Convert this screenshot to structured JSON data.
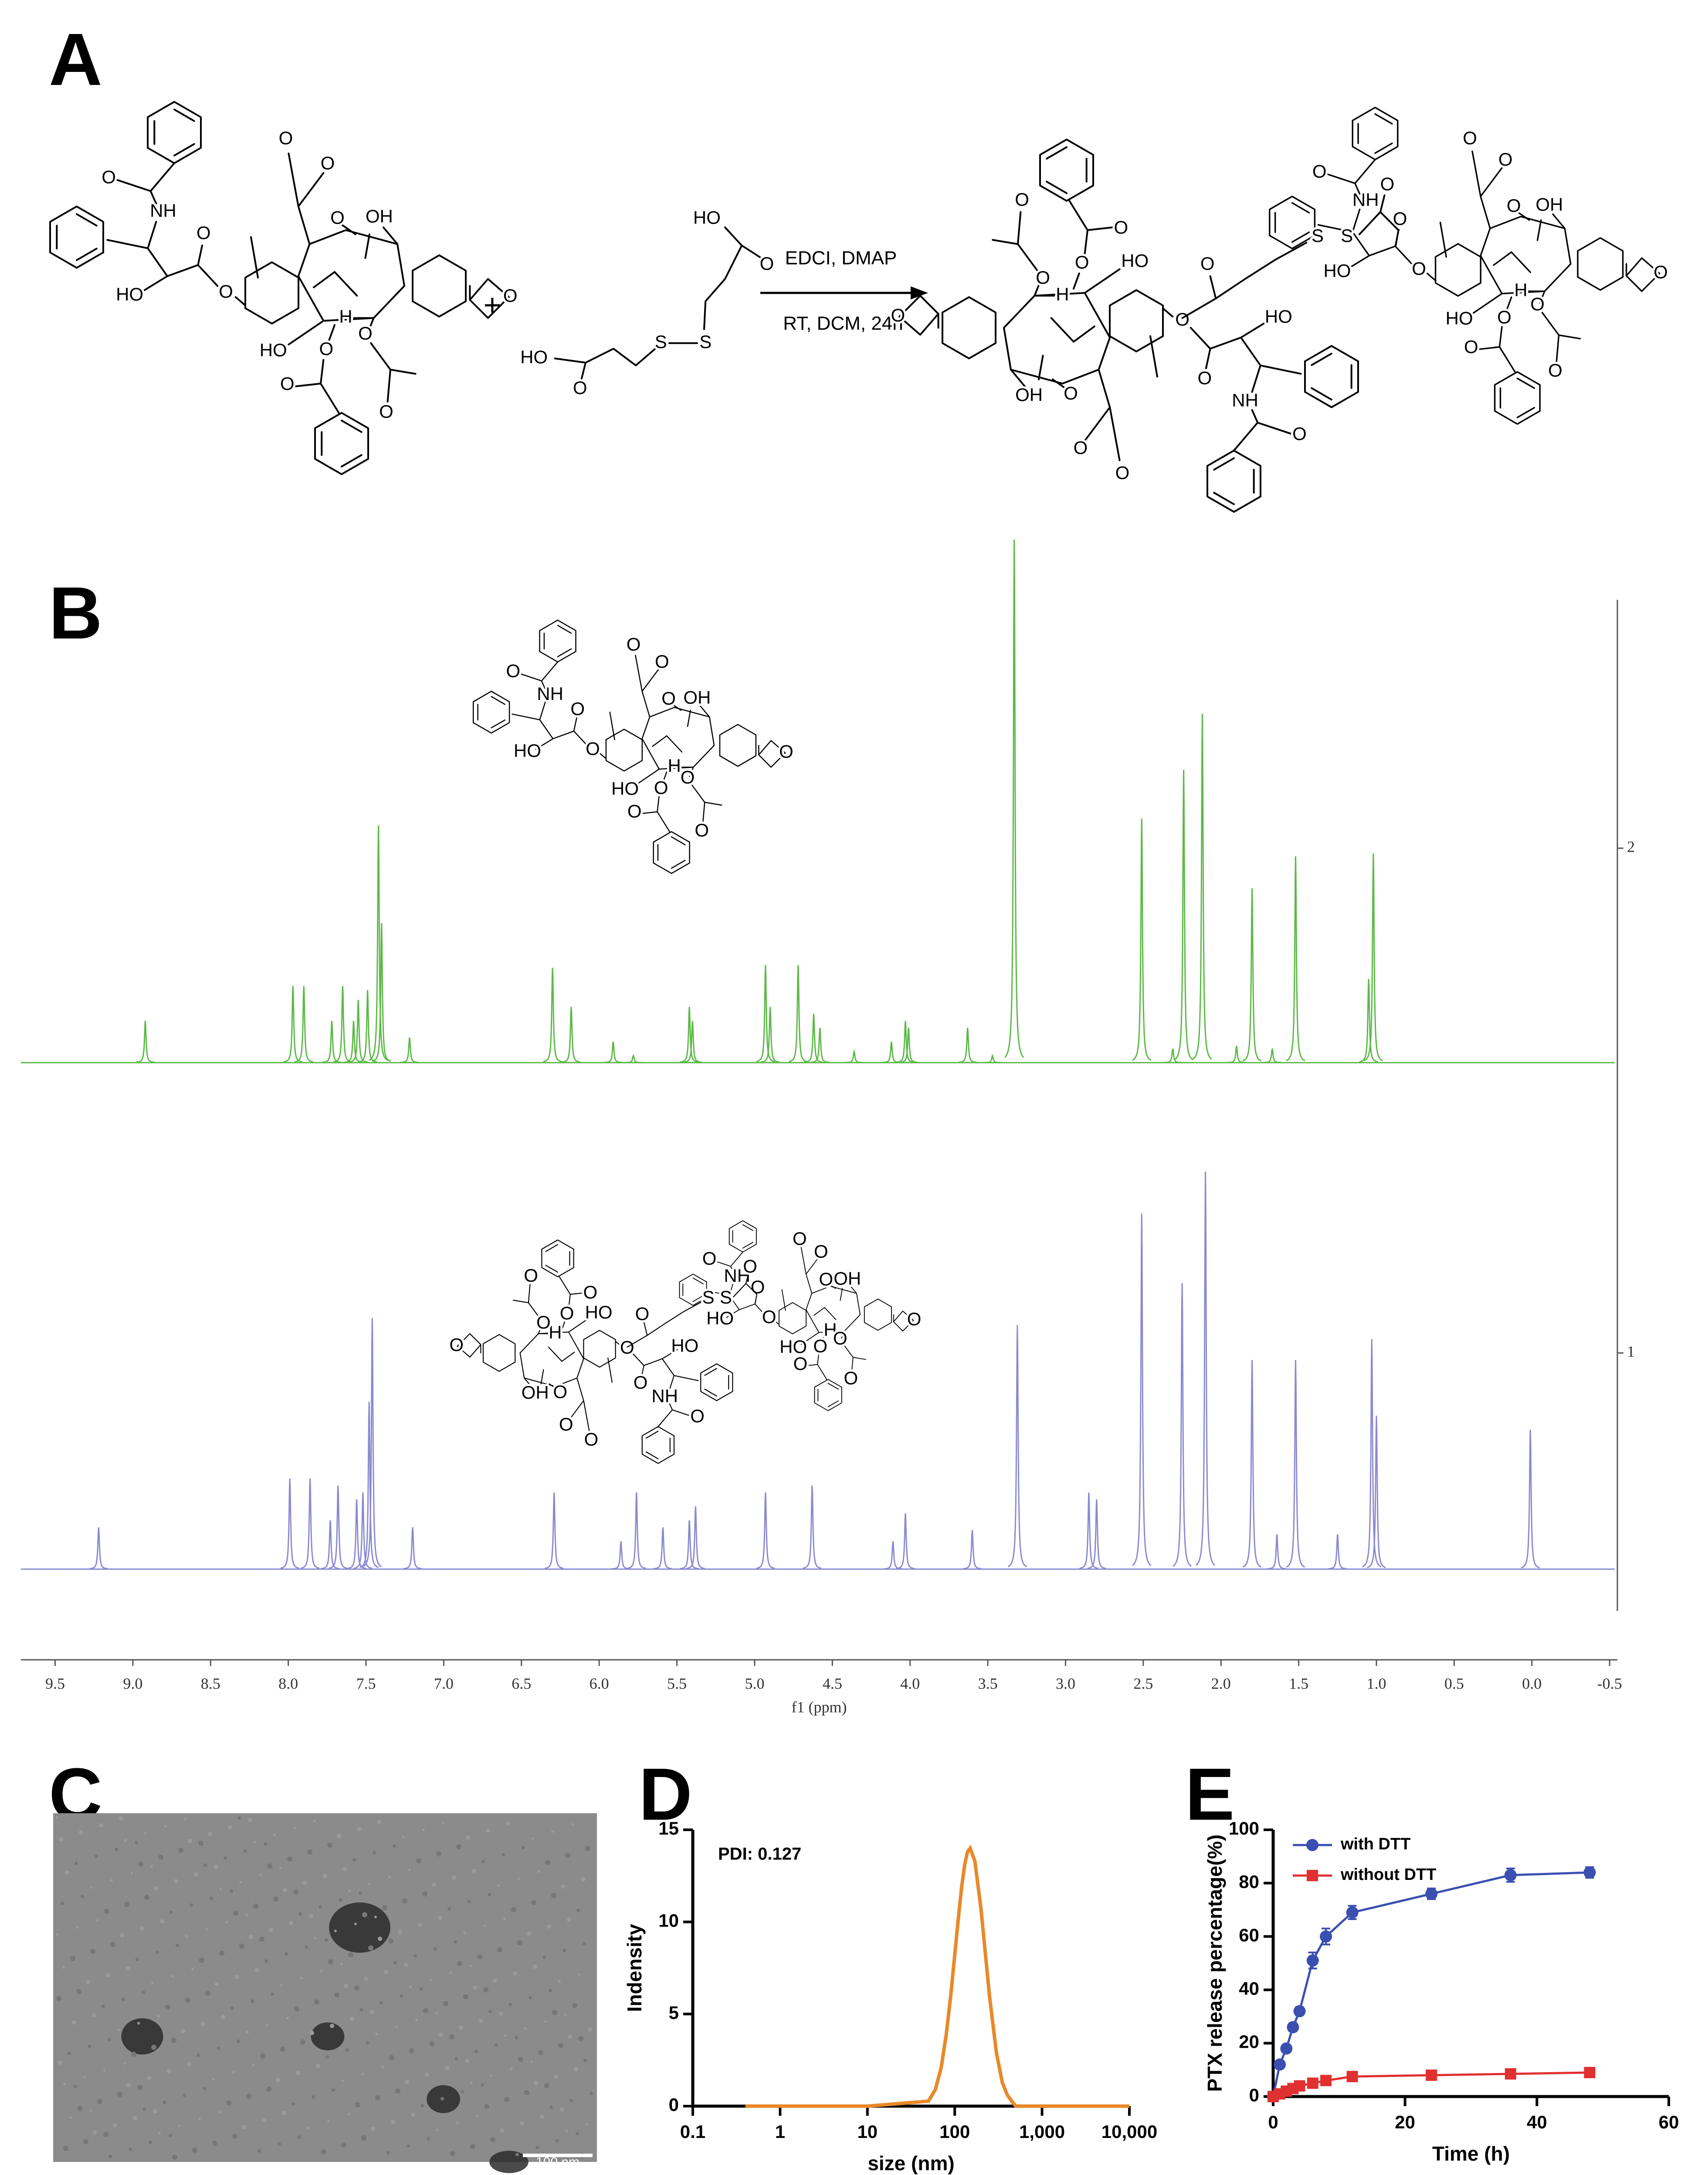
{
  "panel_labels": [
    "A",
    "B",
    "C",
    "D",
    "E"
  ],
  "reaction": {
    "paclitaxel_labels": [
      "O",
      "NH",
      "HO",
      "O",
      "O",
      "O",
      "O",
      "O",
      "OH",
      "HO",
      "H",
      "O",
      "O",
      "O",
      "O",
      "O"
    ],
    "reagent_labels": [
      "HO",
      "O",
      "S",
      "S",
      "HO",
      "O"
    ],
    "plus": "+",
    "conditions": [
      "EDCI, DMAP",
      "RT, DCM, 24h"
    ],
    "linker_labels": [
      "O",
      "S",
      "S",
      "O"
    ]
  },
  "tem": {
    "scale_bar": "100 nm"
  },
  "chart_data": [
    {
      "type": "nmr",
      "xlabel": "f1 (ppm)",
      "xlim": [
        9.72,
        -0.55
      ],
      "xticks": [
        9.5,
        {
          "value": 9,
          "label": "9.0"
        },
        8.5,
        {
          "value": 8,
          "label": "8.0"
        },
        7.5,
        {
          "value": 7,
          "label": "7.0"
        },
        6.5,
        {
          "value": 6,
          "label": "6.0"
        },
        5.5,
        {
          "value": 5,
          "label": "5.0"
        },
        4.5,
        {
          "value": 4,
          "label": "4.0"
        },
        3.5,
        {
          "value": 3,
          "label": "3.0"
        },
        2.5,
        {
          "value": 2,
          "label": "2.0"
        },
        1.5,
        {
          "value": 1,
          "label": "1.0"
        },
        0.5,
        {
          "value": 0,
          "label": "0.0"
        },
        -0.5
      ],
      "series": [
        {
          "name": "2",
          "color": "#5cb947",
          "shifts": [
            8.92,
            7.97,
            7.9,
            7.72,
            7.65,
            7.58,
            7.55,
            7.49,
            7.42,
            7.4,
            7.22,
            6.3,
            6.18,
            5.91,
            5.78,
            5.42,
            5.4,
            4.93,
            4.9,
            4.72,
            4.62,
            4.58,
            4.36,
            4.12,
            4.03,
            4.01,
            3.63,
            3.47,
            3.33,
            2.51,
            2.31,
            2.24,
            2.12,
            1.9,
            1.8,
            1.67,
            1.52,
            1.05,
            1.02
          ],
          "intensities": [
            0.3,
            0.55,
            0.55,
            0.3,
            0.55,
            0.3,
            0.45,
            0.52,
            1.7,
            1.0,
            0.18,
            0.68,
            0.4,
            0.15,
            0.05,
            0.4,
            0.3,
            0.7,
            0.4,
            0.7,
            0.35,
            0.25,
            0.08,
            0.15,
            0.3,
            0.25,
            0.25,
            0.05,
            3.75,
            1.75,
            0.1,
            2.1,
            2.5,
            0.12,
            1.25,
            0.1,
            1.48,
            0.6,
            1.5
          ]
        },
        {
          "name": "1",
          "color": "#8a8ad0",
          "shifts": [
            9.22,
            7.99,
            7.86,
            7.73,
            7.68,
            7.56,
            7.52,
            7.48,
            7.46,
            7.2,
            6.29,
            5.86,
            5.76,
            5.59,
            5.42,
            5.38,
            4.93,
            4.63,
            4.11,
            4.03,
            3.6,
            3.31,
            2.85,
            2.8,
            2.51,
            2.25,
            2.1,
            1.8,
            1.64,
            1.52,
            1.25,
            1.03,
            1.0,
            0.01
          ],
          "intensities": [
            0.3,
            0.65,
            0.65,
            0.35,
            0.6,
            0.5,
            0.55,
            1.2,
            1.8,
            0.3,
            0.55,
            0.2,
            0.55,
            0.3,
            0.35,
            0.45,
            0.55,
            0.6,
            0.2,
            0.4,
            0.28,
            1.75,
            0.55,
            0.5,
            2.55,
            2.05,
            2.85,
            1.5,
            0.25,
            1.5,
            0.25,
            1.65,
            1.1,
            1.0
          ]
        }
      ]
    },
    {
      "type": "line",
      "xscale": "log",
      "xlabel": "size (nm)",
      "ylabel": "Indensity",
      "annotation": "PDI: 0.127",
      "xlim": [
        0.1,
        10000
      ],
      "xticks": [
        0.1,
        1,
        10,
        100,
        {
          "value": 1000,
          "label": "1,000"
        },
        {
          "value": 10000,
          "label": "10,000"
        }
      ],
      "ylim": [
        0,
        15
      ],
      "yticks": [
        0,
        5,
        10,
        15
      ],
      "series": [
        {
          "color": "#e8892a",
          "x": [
            0.4,
            1,
            10,
            50,
            60,
            70,
            80,
            90,
            100,
            110,
            120,
            130,
            140,
            150,
            170,
            200,
            250,
            300,
            350,
            400,
            450,
            500,
            1000,
            10000
          ],
          "values": [
            0,
            0,
            0,
            0.27,
            0.9,
            2.1,
            3.9,
            6.0,
            8.2,
            10.2,
            11.9,
            13.1,
            13.8,
            14,
            13.3,
            10.7,
            6.0,
            2.9,
            1.3,
            0.6,
            0.27,
            0,
            0,
            0
          ]
        }
      ]
    },
    {
      "type": "errorline",
      "xlabel": "Time (h)",
      "ylabel": "PTX release percentage(%)",
      "legend": "top-left",
      "xlim": [
        0,
        60
      ],
      "xticks": [
        0,
        20,
        40,
        60
      ],
      "ylim": [
        0,
        100
      ],
      "yticks": [
        0,
        20,
        40,
        60,
        80,
        100
      ],
      "x": [
        0,
        1,
        2,
        3,
        4,
        6,
        8,
        12,
        24,
        36,
        48
      ],
      "series": [
        {
          "name": "with DTT",
          "color": "#3a4fb0",
          "marker": "circle",
          "values": [
            0,
            12,
            18,
            26,
            32,
            51,
            60,
            69,
            76,
            83,
            84
          ],
          "errors": [
            0,
            1,
            1,
            1.5,
            1.5,
            3,
            3,
            2.5,
            2,
            2.5,
            2
          ]
        },
        {
          "name": "without DTT",
          "color": "#e03030",
          "marker": "square",
          "values": [
            0,
            1,
            2,
            3,
            4,
            5,
            6,
            7.5,
            8,
            8.5,
            9
          ],
          "errors": [
            0,
            0.3,
            0.5,
            0.5,
            0.5,
            0.5,
            0.8,
            0.8,
            0.8,
            0.8,
            0.8
          ]
        }
      ]
    }
  ]
}
